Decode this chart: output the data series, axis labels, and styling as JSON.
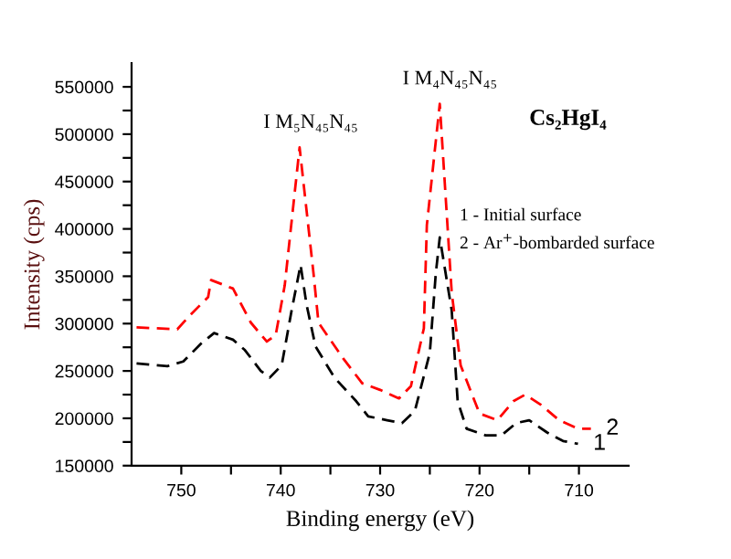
{
  "chart_data": {
    "type": "line",
    "xlabel": "Binding energy (eV)",
    "ylabel": "Intensity (cps)",
    "xlim": [
      755,
      705
    ],
    "ylim": [
      150000,
      575000
    ],
    "xticks": [
      750,
      {
        "value": 745,
        "label": null
      },
      740,
      {
        "value": 735,
        "label": null
      },
      730,
      {
        "value": 725,
        "label": null
      },
      720,
      {
        "value": 715,
        "label": null
      },
      710
    ],
    "yticks": [
      150000,
      {
        "value": 175000,
        "label": null
      },
      200000,
      {
        "value": 225000,
        "label": null
      },
      250000,
      {
        "value": 275000,
        "label": null
      },
      300000,
      {
        "value": 325000,
        "label": null
      },
      350000,
      {
        "value": 375000,
        "label": null
      },
      400000,
      {
        "value": 425000,
        "label": null
      },
      450000,
      {
        "value": 475000,
        "label": null
      },
      500000,
      {
        "value": 525000,
        "label": null
      },
      550000
    ],
    "grid": false,
    "legend": false,
    "line_style": "dashed",
    "marker": "none",
    "series": [
      {
        "color": "#000000",
        "x": [
          754.5,
          751.4,
          749.8,
          748,
          746.7,
          744.8,
          743.6,
          742,
          741.1,
          739.9,
          738.9,
          738,
          737.4,
          736.5,
          734.6,
          732.4,
          731.2,
          729.3,
          727.8,
          726.5,
          725,
          724.4,
          724,
          722.8,
          722.2,
          721.3,
          719.4,
          717.8,
          716.3,
          715,
          713.2,
          711.6,
          710.1
        ],
        "values": [
          258000,
          255000,
          260000,
          279000,
          290000,
          283000,
          272000,
          250000,
          243000,
          256000,
          314000,
          362000,
          320000,
          276000,
          243000,
          218000,
          202000,
          198000,
          195000,
          208000,
          269000,
          353000,
          391000,
          314000,
          218000,
          189000,
          182000,
          182000,
          195000,
          198000,
          185000,
          176000,
          173000
        ]
      },
      {
        "color": "#ff0000",
        "x": [
          754.5,
          750.4,
          749.2,
          747.3,
          747,
          744.8,
          743,
          741.4,
          740.5,
          739.6,
          738.1,
          736.7,
          736.2,
          733.7,
          731.8,
          730,
          728.1,
          726.9,
          725.6,
          725.3,
          724,
          722.8,
          721.9,
          720,
          718.2,
          716.6,
          715.4,
          713.8,
          712,
          710.1,
          708.8
        ],
        "values": [
          296000,
          294000,
          308000,
          328000,
          346000,
          337000,
          301000,
          281000,
          288000,
          340000,
          486000,
          353000,
          301000,
          263000,
          237000,
          230000,
          221000,
          234000,
          295000,
          404000,
          532000,
          333000,
          256000,
          205000,
          198000,
          218000,
          225000,
          214000,
          198000,
          189000,
          189000
        ]
      }
    ],
    "annotations": [
      {
        "text": "I M₅N₄₅N₄₅",
        "x": 738,
        "y": 486000
      },
      {
        "text": "I M₄N₄₅N₄₅",
        "x": 724,
        "y": 532000
      },
      "Cs₂HgI₄",
      "1 - Initial surface",
      "2 - Ar$^{+}$-bombarded surface",
      {
        "text": "2",
        "x": 708.8,
        "y": 189000
      },
      {
        "text": "1",
        "x": 710.1,
        "y": 173000
      }
    ]
  }
}
